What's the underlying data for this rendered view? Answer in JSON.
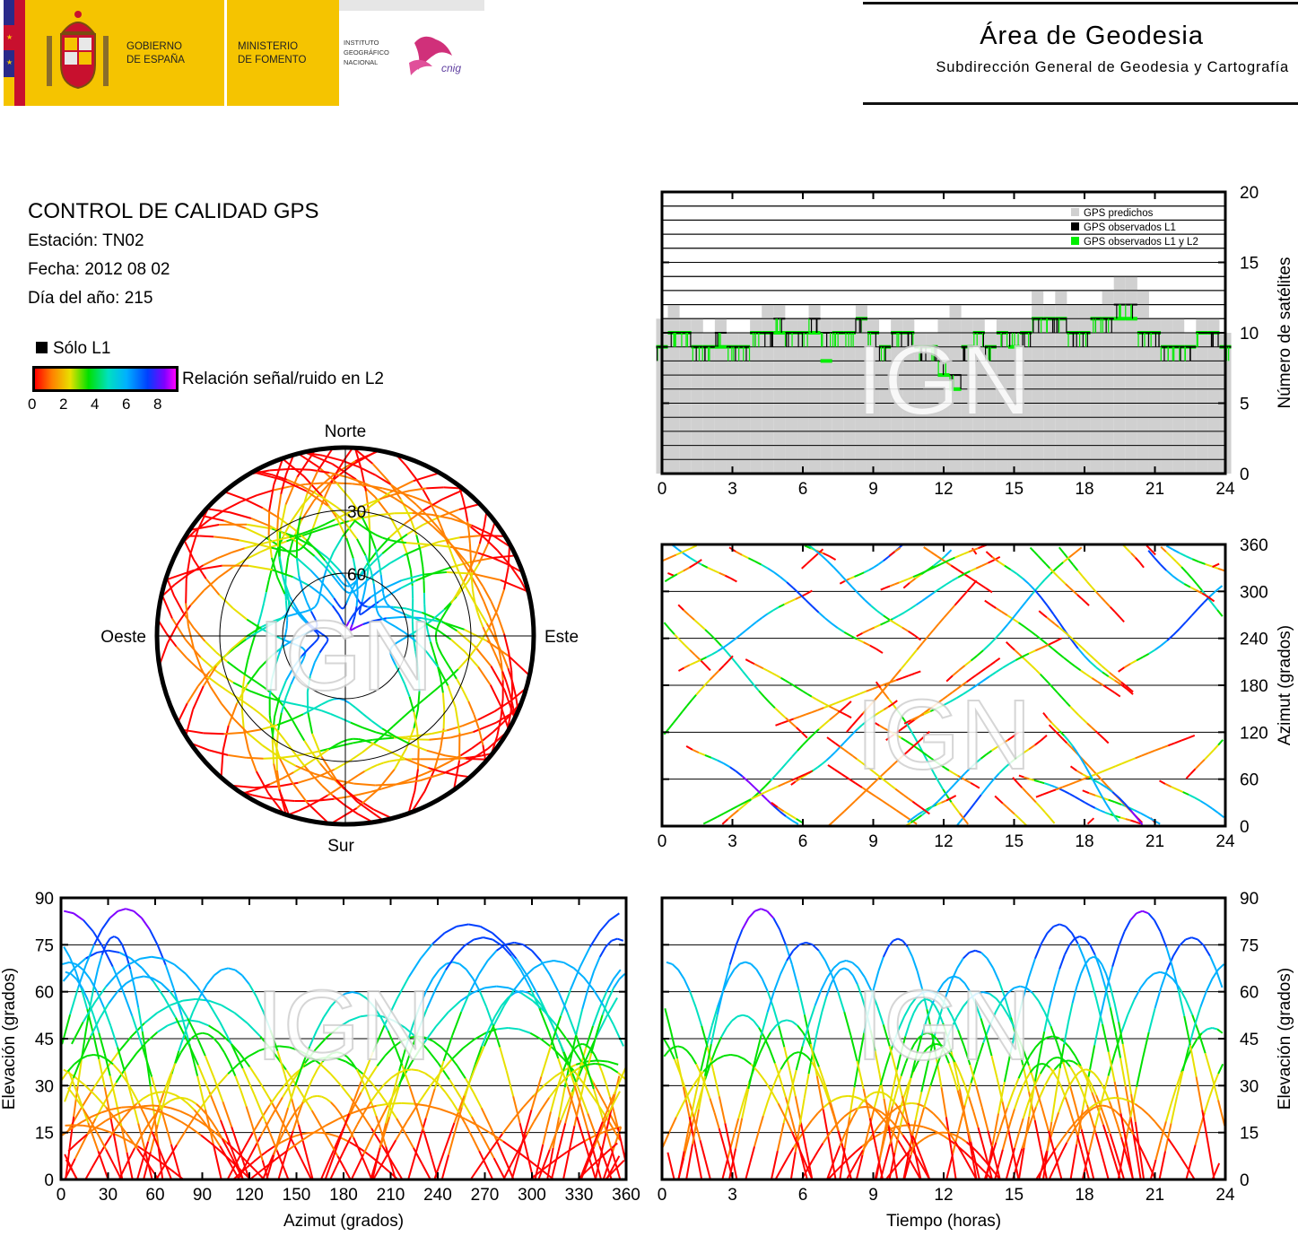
{
  "header": {
    "logo_text": {
      "gobierno": [
        "GOBIERNO",
        "DE ESPAÑA"
      ],
      "ministerio": [
        "MINISTERIO",
        "DE FOMENTO"
      ],
      "instituto": [
        "INSTITUTO",
        "GEOGRÁFICO",
        "NACIONAL"
      ],
      "cnig": "cnig"
    },
    "title": "Área de Geodesia",
    "subtitle": "Subdirección General de Geodesia y Cartografía"
  },
  "info": {
    "title": "CONTROL DE CALIDAD GPS",
    "station": "Estación: TN02",
    "date": "Fecha: 2012 08 02",
    "doy": "Día del año: 215"
  },
  "legend": {
    "l1_only": "Sólo L1",
    "colorbar_label": "Relación señal/ruido en L2",
    "colorbar_ticks": [
      "0",
      "2",
      "4",
      "6",
      "8"
    ]
  },
  "watermark": "IGN",
  "colors": {
    "predicted": "#d0d0d0",
    "observed_l1": "#000000",
    "observed_l1_l2": "#00ee00",
    "snr_scale": [
      "#ff0000",
      "#ff8000",
      "#e8e000",
      "#00e000",
      "#00e0c0",
      "#00b0ff",
      "#0040ff",
      "#8000ff",
      "#ff00ff"
    ]
  },
  "chart_data": [
    {
      "id": "polar-skyplot",
      "type": "scatter",
      "directions": {
        "north": "Norte",
        "south": "Sur",
        "east": "Este",
        "west": "Oeste"
      },
      "ring_labels": [
        "30",
        "60"
      ],
      "rings_elevation_deg": [
        0,
        30,
        60
      ],
      "color_encoding": "SNR L2 (0-8)"
    },
    {
      "id": "satellite-count",
      "type": "bar",
      "ylabel": "Número de satélites",
      "xlim": [
        0,
        24
      ],
      "ylim": [
        0,
        20
      ],
      "xticks": [
        "0",
        "3",
        "6",
        "9",
        "12",
        "15",
        "18",
        "21",
        "24"
      ],
      "yticks": [
        "0",
        "5",
        "10",
        "15",
        "20"
      ],
      "legend": [
        "GPS predichos",
        "GPS observados L1",
        "GPS observados L1 y L2"
      ],
      "legend_position": "top-right",
      "predicted": {
        "x": [
          0,
          0.5,
          1,
          1.5,
          2,
          2.5,
          3,
          3.5,
          4,
          4.5,
          5,
          5.5,
          6,
          6.5,
          7,
          7.5,
          8,
          8.5,
          9,
          9.5,
          10,
          10.5,
          11,
          11.5,
          12,
          12.5,
          13,
          13.5,
          14,
          14.5,
          15,
          15.5,
          16,
          16.5,
          17,
          17.5,
          18,
          18.5,
          19,
          19.5,
          20,
          20.5,
          21,
          21.5,
          22,
          22.5,
          23,
          23.5,
          24
        ],
        "values": [
          11,
          12,
          11,
          11,
          10,
          11,
          10,
          10,
          11,
          12,
          12,
          11,
          11,
          12,
          11,
          11,
          11,
          12,
          11,
          10,
          11,
          11,
          10,
          10,
          11,
          12,
          11,
          11,
          10,
          11,
          11,
          11,
          13,
          12,
          13,
          12,
          12,
          12,
          13,
          14,
          14,
          13,
          11,
          11,
          11,
          10,
          11,
          11,
          10
        ]
      },
      "observed_l1": {
        "x": [
          0,
          0.5,
          1,
          1.5,
          2,
          2.5,
          3,
          3.5,
          4,
          4.5,
          5,
          5.5,
          6,
          6.5,
          7,
          7.5,
          8,
          8.5,
          9,
          9.5,
          10,
          10.5,
          11,
          11.5,
          12,
          12.5,
          13,
          13.5,
          14,
          14.5,
          15,
          15.5,
          16,
          16.5,
          17,
          17.5,
          18,
          18.5,
          19,
          19.5,
          20,
          20.5,
          21,
          21.5,
          22,
          22.5,
          23,
          23.5,
          24
        ],
        "values": [
          9,
          10,
          10,
          9,
          9,
          10,
          9,
          9,
          10,
          10,
          11,
          10,
          10,
          11,
          10,
          10,
          10,
          11,
          10,
          9,
          10,
          10,
          9,
          9,
          8,
          7,
          9,
          10,
          9,
          10,
          10,
          10,
          11,
          11,
          11,
          10,
          10,
          11,
          11,
          12,
          12,
          10,
          10,
          9,
          9,
          9,
          10,
          10,
          9
        ]
      },
      "observed_l1_l2": {
        "x": [
          0,
          0.5,
          1,
          1.5,
          2,
          2.5,
          3,
          3.5,
          4,
          4.5,
          5,
          5.5,
          6,
          6.5,
          7,
          7.5,
          8,
          8.5,
          9,
          9.5,
          10,
          10.5,
          11,
          11.5,
          12,
          12.5,
          13,
          13.5,
          14,
          14.5,
          15,
          15.5,
          16,
          16.5,
          17,
          17.5,
          18,
          18.5,
          19,
          19.5,
          20,
          20.5,
          21,
          21.5,
          22,
          22.5,
          23,
          23.5,
          24
        ],
        "values": [
          9,
          10,
          10,
          9,
          9,
          9,
          9,
          9,
          10,
          10,
          10,
          10,
          10,
          10,
          8,
          10,
          10,
          11,
          10,
          9,
          10,
          10,
          9,
          9,
          7,
          6,
          9,
          10,
          9,
          10,
          9,
          10,
          11,
          11,
          11,
          10,
          10,
          11,
          11,
          11,
          11,
          10,
          10,
          9,
          9,
          9,
          10,
          10,
          9
        ]
      }
    },
    {
      "id": "azimuth-vs-time",
      "type": "scatter",
      "ylabel": "Azimut (grados)",
      "xlim": [
        0,
        24
      ],
      "ylim": [
        0,
        360
      ],
      "xticks": [
        "0",
        "3",
        "6",
        "9",
        "12",
        "15",
        "18",
        "21",
        "24"
      ],
      "yticks": [
        "0",
        "60",
        "120",
        "180",
        "240",
        "300",
        "360"
      ]
    },
    {
      "id": "elevation-vs-azimuth",
      "type": "scatter",
      "xlabel": "Azimut (grados)",
      "ylabel": "Elevación (grados)",
      "xlim": [
        0,
        360
      ],
      "ylim": [
        0,
        90
      ],
      "xticks": [
        "0",
        "30",
        "60",
        "90",
        "120",
        "150",
        "180",
        "210",
        "240",
        "270",
        "300",
        "330",
        "360"
      ],
      "yticks": [
        "0",
        "15",
        "30",
        "45",
        "60",
        "75",
        "90"
      ]
    },
    {
      "id": "elevation-vs-time",
      "type": "scatter",
      "xlabel": "Tiempo (horas)",
      "ylabel": "Elevación (grados)",
      "xlim": [
        0,
        24
      ],
      "ylim": [
        0,
        90
      ],
      "xticks": [
        "0",
        "3",
        "6",
        "9",
        "12",
        "15",
        "18",
        "21",
        "24"
      ],
      "yticks": [
        "0",
        "15",
        "30",
        "45",
        "60",
        "75",
        "90"
      ]
    }
  ]
}
